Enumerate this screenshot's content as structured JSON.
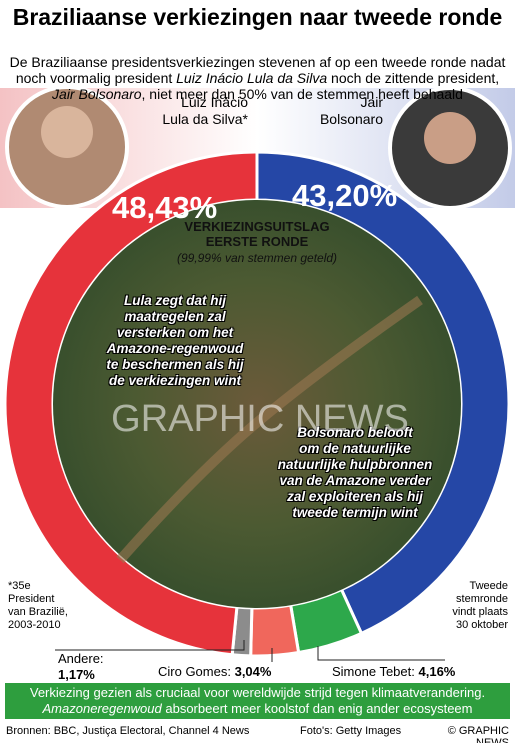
{
  "header": {
    "title": "Braziliaanse verkiezingen naar tweede ronde",
    "subtitle": [
      "De Braziliaanse presidentsverkiezingen stevenen af op een tweede ronde nadat noch voormalig president ",
      "Luiz Inácio Lula da Silva",
      " noch de zittende president, ",
      "Jair Bolsonaro",
      ", niet meer dan 50% van de stemmen heeft behaald"
    ]
  },
  "chart_data": {
    "type": "donut",
    "categories": [
      "Jair\nBolsonaro",
      "Simone Tebet:",
      "Ciro Gomes:",
      "Andere:",
      "Luiz Inácio\nLula da Silva*"
    ],
    "values": [
      43.2,
      4.16,
      3.04,
      1.17,
      48.43
    ],
    "value_labels": [
      "43,20%",
      "4,16%",
      "3,04%",
      "1,17%",
      "48,43%"
    ],
    "colors": [
      "#2547a6",
      "#2da84b",
      "#f0675c",
      "#8c8c8c",
      "#e6333b"
    ],
    "center": {
      "title": "VERKIEZINGSUITSLAG\nEERSTE RONDE",
      "note": "(99,99% van stemmen geteld)"
    },
    "annotations": [
      "Lula zegt dat hij\nmaatregelen zal\nversterken om het\nAmazone-regenwoud\nte beschermen als hij\nde verkiezingen wint",
      "Bolsonaro belooft\nom de natuurlijke\nnatuurlijke hulpbronnen\nvan de Amazone verder\nzal exploiteren als hij\ntweede termijn wint",
      "GRAPHIC NEWS"
    ],
    "footnotes": [
      "*35e\nPresident\nvan Brazilië,\n2003-2010",
      "Tweede\nstemronde\nvindt plaats\n30 oktober"
    ]
  },
  "banner": [
    "Verkiezing gezien als cruciaal voor wereldwijde strijd tegen klimaatverandering.",
    "Amazoneregenwoud",
    " absorbeert meer koolstof dan enig ander ecosysteem"
  ],
  "footer": {
    "sources": "Bronnen: BBC, Justiça Electoral, Channel 4 News",
    "photos": "Foto's: Getty Images",
    "copyright": "© GRAPHIC NEWS"
  }
}
